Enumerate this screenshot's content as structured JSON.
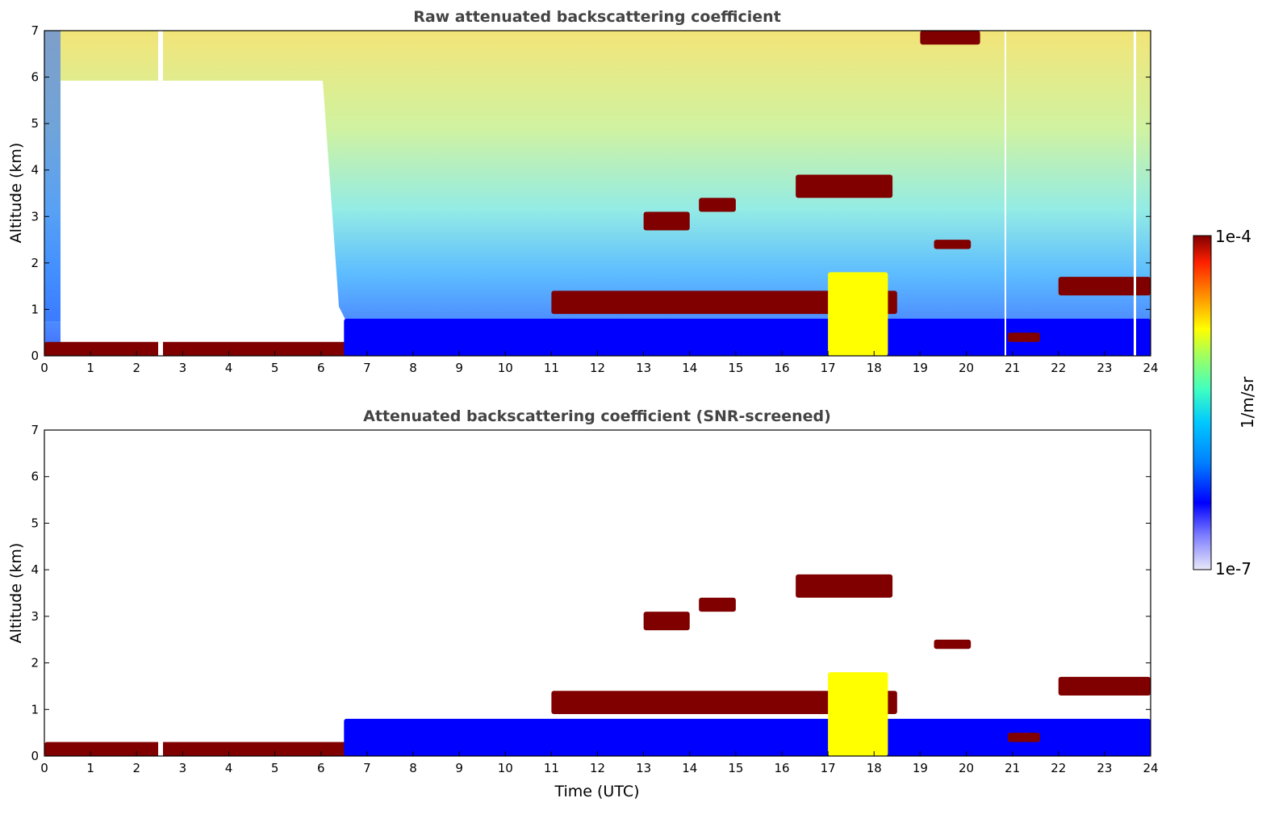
{
  "chart_data": [
    {
      "type": "heatmap",
      "title": "Raw attenuated backscattering coefficient",
      "xlabel": "",
      "ylabel": "Altitude (km)",
      "xlim": [
        0,
        24
      ],
      "ylim": [
        0,
        7
      ],
      "xticks": [
        0,
        1,
        2,
        3,
        4,
        5,
        6,
        7,
        8,
        9,
        10,
        11,
        12,
        13,
        14,
        15,
        16,
        17,
        18,
        19,
        20,
        21,
        22,
        23,
        24
      ],
      "yticks": [
        0,
        1,
        2,
        3,
        4,
        5,
        6,
        7
      ],
      "features": [
        {
          "time": [
            0,
            7
          ],
          "alt": [
            0,
            0.3
          ],
          "level": 1.0
        },
        {
          "time": [
            6.5,
            24
          ],
          "alt": [
            0,
            0.8
          ],
          "level": 0.15
        },
        {
          "time": [
            11,
            18.5
          ],
          "alt": [
            0.9,
            1.4
          ],
          "level": 0.95
        },
        {
          "time": [
            13,
            14
          ],
          "alt": [
            2.7,
            3.1
          ],
          "level": 1.0
        },
        {
          "time": [
            14.2,
            15
          ],
          "alt": [
            3.1,
            3.4
          ],
          "level": 1.0
        },
        {
          "time": [
            16.3,
            18.4
          ],
          "alt": [
            3.4,
            3.9
          ],
          "level": 1.0
        },
        {
          "time": [
            17,
            18.3
          ],
          "alt": [
            0,
            1.8
          ],
          "level": 0.65
        },
        {
          "time": [
            19.3,
            20.1
          ],
          "alt": [
            2.3,
            2.5
          ],
          "level": 1.0
        },
        {
          "time": [
            22,
            24
          ],
          "alt": [
            1.3,
            1.7
          ],
          "level": 1.0
        },
        {
          "time": [
            20.9,
            21.6
          ],
          "alt": [
            0.3,
            0.5
          ],
          "level": 1.0
        },
        {
          "time": [
            19,
            20.3
          ],
          "alt": [
            6.7,
            7
          ],
          "level": 1.0
        }
      ]
    },
    {
      "type": "heatmap",
      "title": "Attenuated backscattering coefficient (SNR-screened)",
      "xlabel": "Time (UTC)",
      "ylabel": "Altitude (km)",
      "xlim": [
        0,
        24
      ],
      "ylim": [
        0,
        7
      ],
      "xticks": [
        0,
        1,
        2,
        3,
        4,
        5,
        6,
        7,
        8,
        9,
        10,
        11,
        12,
        13,
        14,
        15,
        16,
        17,
        18,
        19,
        20,
        21,
        22,
        23,
        24
      ],
      "yticks": [
        0,
        1,
        2,
        3,
        4,
        5,
        6,
        7
      ],
      "features": [
        {
          "time": [
            0,
            7
          ],
          "alt": [
            0,
            0.3
          ],
          "level": 1.0
        },
        {
          "time": [
            6.5,
            24
          ],
          "alt": [
            0,
            0.8
          ],
          "level": 0.15
        },
        {
          "time": [
            11,
            18.5
          ],
          "alt": [
            0.9,
            1.4
          ],
          "level": 0.95
        },
        {
          "time": [
            13,
            14
          ],
          "alt": [
            2.7,
            3.1
          ],
          "level": 1.0
        },
        {
          "time": [
            14.2,
            15
          ],
          "alt": [
            3.1,
            3.4
          ],
          "level": 1.0
        },
        {
          "time": [
            16.3,
            18.4
          ],
          "alt": [
            3.4,
            3.9
          ],
          "level": 1.0
        },
        {
          "time": [
            17,
            18.3
          ],
          "alt": [
            0,
            1.8
          ],
          "level": 0.65
        },
        {
          "time": [
            19.3,
            20.1
          ],
          "alt": [
            2.3,
            2.5
          ],
          "level": 1.0
        },
        {
          "time": [
            22,
            24
          ],
          "alt": [
            1.3,
            1.7
          ],
          "level": 1.0
        },
        {
          "time": [
            20.9,
            21.6
          ],
          "alt": [
            0.3,
            0.5
          ],
          "level": 1.0
        }
      ]
    }
  ],
  "colorbar": {
    "max_label": "1e-4",
    "min_label": "1e-7",
    "unit": "1/m/sr",
    "colors": [
      "#e8e8f8",
      "#8080ff",
      "#0000ff",
      "#0080ff",
      "#00c8ff",
      "#40ffc0",
      "#a0ff60",
      "#ffff00",
      "#ff9000",
      "#ff2000",
      "#800000"
    ]
  }
}
